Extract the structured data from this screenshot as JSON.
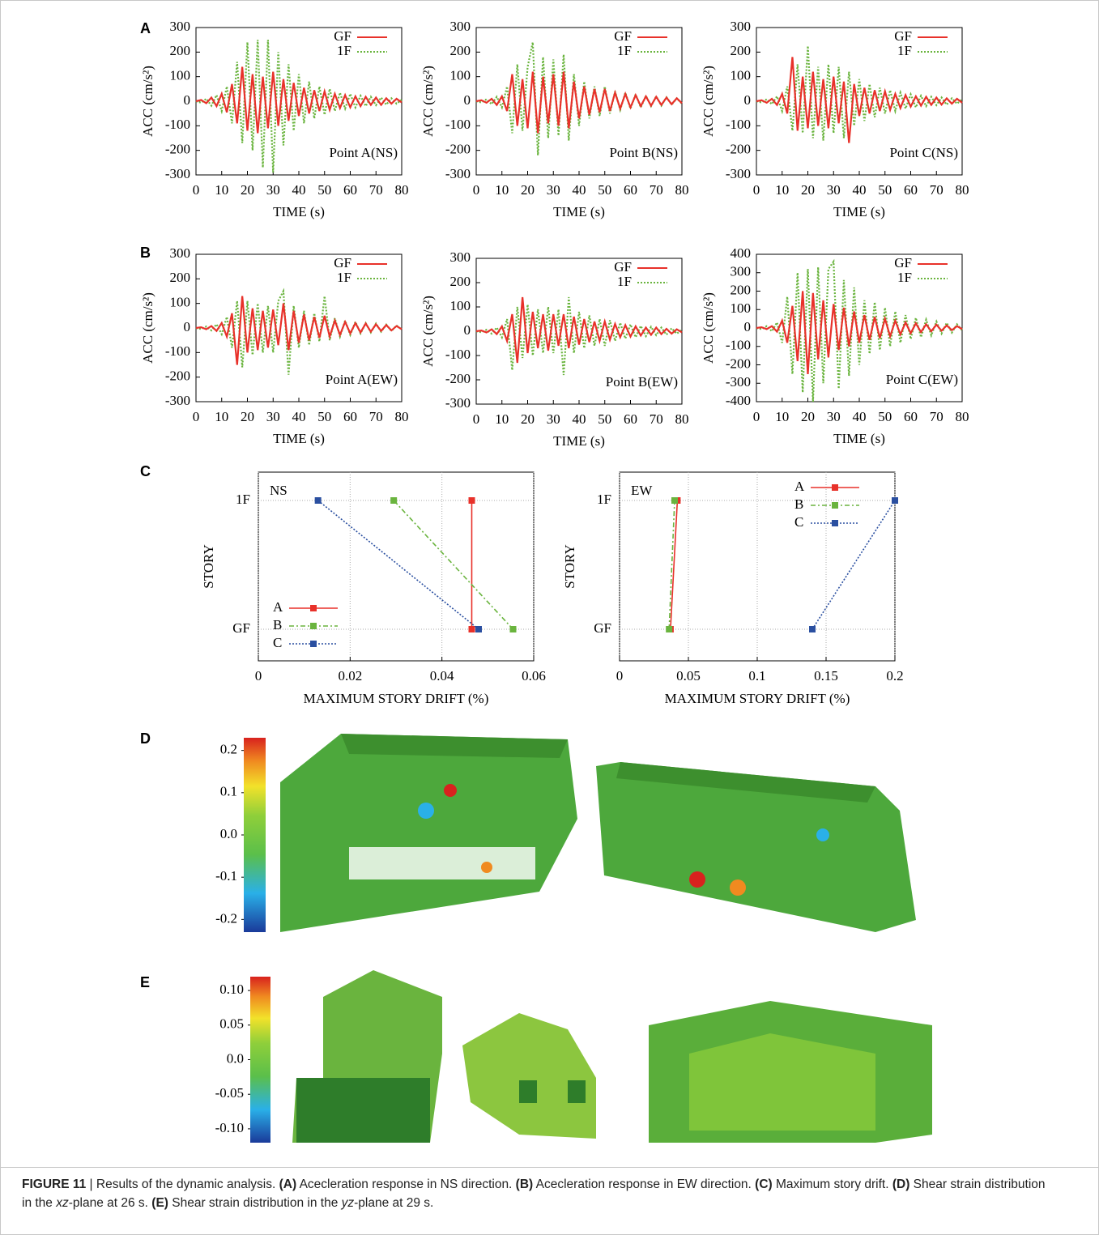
{
  "panel_labels": [
    "A",
    "B",
    "C",
    "D",
    "E"
  ],
  "chart_data": [
    {
      "type": "line",
      "annotation": "Point A(NS)",
      "xlabel": "TIME (s)",
      "ylabel": "ACC (cm/s²)",
      "xlim": [
        0,
        80
      ],
      "ylim": [
        -300,
        300
      ],
      "xticks": [
        0,
        10,
        20,
        30,
        40,
        50,
        60,
        70,
        80
      ],
      "yticks": [
        -300,
        -200,
        -100,
        0,
        100,
        200,
        300
      ],
      "legend": "upper right",
      "x": [
        0,
        2,
        4,
        6,
        8,
        10,
        12,
        14,
        16,
        18,
        20,
        22,
        24,
        26,
        28,
        30,
        32,
        34,
        36,
        38,
        40,
        42,
        44,
        46,
        48,
        50,
        52,
        54,
        56,
        58,
        60,
        62,
        64,
        66,
        68,
        70,
        72,
        74,
        76,
        78,
        80
      ],
      "series": [
        {
          "name": "GF",
          "color": "#e8312a",
          "line_style": "solid",
          "values": [
            0,
            5,
            -8,
            15,
            -20,
            30,
            -45,
            70,
            -90,
            140,
            -120,
            110,
            -130,
            100,
            -110,
            120,
            -100,
            90,
            -80,
            75,
            -60,
            55,
            -50,
            45,
            -40,
            40,
            -35,
            30,
            -28,
            25,
            -25,
            20,
            -20,
            18,
            -15,
            15,
            -15,
            12,
            -10,
            10,
            -5
          ]
        },
        {
          "name": "1F",
          "color": "#6ab43e",
          "line_style": "dotted",
          "values": [
            0,
            -6,
            10,
            -18,
            25,
            -40,
            60,
            -90,
            160,
            -170,
            240,
            -200,
            250,
            -270,
            250,
            -290,
            200,
            -180,
            150,
            -120,
            110,
            -90,
            80,
            -70,
            60,
            -55,
            50,
            -40,
            35,
            -30,
            30,
            -25,
            22,
            -20,
            18,
            -16,
            15,
            -14,
            12,
            -10,
            6
          ]
        }
      ]
    },
    {
      "type": "line",
      "annotation": "Point B(NS)",
      "xlabel": "TIME (s)",
      "ylabel": "ACC (cm/s²)",
      "xlim": [
        0,
        80
      ],
      "ylim": [
        -300,
        300
      ],
      "xticks": [
        0,
        10,
        20,
        30,
        40,
        50,
        60,
        70,
        80
      ],
      "yticks": [
        -300,
        -200,
        -100,
        0,
        100,
        200,
        300
      ],
      "legend": "upper right",
      "x": [
        0,
        2,
        4,
        6,
        8,
        10,
        12,
        14,
        16,
        18,
        20,
        22,
        24,
        26,
        28,
        30,
        32,
        34,
        36,
        38,
        40,
        42,
        44,
        46,
        48,
        50,
        52,
        54,
        56,
        58,
        60,
        62,
        64,
        66,
        68,
        70,
        72,
        74,
        76,
        78,
        80
      ],
      "series": [
        {
          "name": "GF",
          "color": "#e8312a",
          "line_style": "solid",
          "values": [
            0,
            4,
            -6,
            10,
            -15,
            20,
            -40,
            110,
            -100,
            90,
            -110,
            120,
            -130,
            100,
            -90,
            110,
            -100,
            120,
            -110,
            80,
            -70,
            60,
            -55,
            50,
            -45,
            50,
            -40,
            35,
            -30,
            30,
            -25,
            25,
            -20,
            20,
            -18,
            18,
            -15,
            15,
            -12,
            12,
            -8
          ]
        },
        {
          "name": "1F",
          "color": "#6ab43e",
          "line_style": "dotted",
          "values": [
            0,
            -5,
            8,
            -12,
            18,
            -25,
            60,
            -130,
            150,
            -120,
            140,
            240,
            -220,
            180,
            -150,
            170,
            -140,
            190,
            -160,
            110,
            -100,
            80,
            -70,
            60,
            -60,
            60,
            -50,
            40,
            -35,
            35,
            -30,
            28,
            -25,
            22,
            -20,
            20,
            -18,
            16,
            -14,
            12,
            -10
          ]
        }
      ]
    },
    {
      "type": "line",
      "annotation": "Point C(NS)",
      "xlabel": "TIME (s)",
      "ylabel": "ACC (cm/s²)",
      "xlim": [
        0,
        80
      ],
      "ylim": [
        -300,
        300
      ],
      "xticks": [
        0,
        10,
        20,
        30,
        40,
        50,
        60,
        70,
        80
      ],
      "yticks": [
        -300,
        -200,
        -100,
        0,
        100,
        200,
        300
      ],
      "legend": "upper right",
      "x": [
        0,
        2,
        4,
        6,
        8,
        10,
        12,
        14,
        16,
        18,
        20,
        22,
        24,
        26,
        28,
        30,
        32,
        34,
        36,
        38,
        40,
        42,
        44,
        46,
        48,
        50,
        52,
        54,
        56,
        58,
        60,
        62,
        64,
        66,
        68,
        70,
        72,
        74,
        76,
        78,
        80
      ],
      "series": [
        {
          "name": "GF",
          "color": "#e8312a",
          "line_style": "solid",
          "values": [
            0,
            4,
            -6,
            10,
            -15,
            30,
            -50,
            180,
            -120,
            100,
            -110,
            120,
            -100,
            90,
            -110,
            100,
            -90,
            80,
            -170,
            70,
            -60,
            55,
            -50,
            45,
            -40,
            40,
            -35,
            30,
            -28,
            25,
            -22,
            20,
            -18,
            18,
            -15,
            15,
            -14,
            12,
            -10,
            10,
            -6
          ]
        },
        {
          "name": "1F",
          "color": "#6ab43e",
          "line_style": "dotted",
          "values": [
            0,
            -5,
            8,
            -12,
            20,
            -40,
            60,
            -120,
            150,
            -130,
            225,
            -150,
            140,
            -160,
            150,
            -130,
            140,
            -150,
            120,
            -100,
            90,
            -80,
            70,
            -65,
            55,
            -50,
            45,
            -40,
            35,
            -30,
            28,
            -25,
            22,
            -20,
            18,
            -16,
            15,
            -14,
            12,
            -10,
            8
          ]
        }
      ]
    },
    {
      "type": "line",
      "annotation": "Point A(EW)",
      "xlabel": "TIME (s)",
      "ylabel": "ACC (cm/s²)",
      "xlim": [
        0,
        80
      ],
      "ylim": [
        -300,
        300
      ],
      "xticks": [
        0,
        10,
        20,
        30,
        40,
        50,
        60,
        70,
        80
      ],
      "yticks": [
        -300,
        -200,
        -100,
        0,
        100,
        200,
        300
      ],
      "legend": "upper right",
      "x": [
        0,
        2,
        4,
        6,
        8,
        10,
        12,
        14,
        16,
        18,
        20,
        22,
        24,
        26,
        28,
        30,
        32,
        34,
        36,
        38,
        40,
        42,
        44,
        46,
        48,
        50,
        52,
        54,
        56,
        58,
        60,
        62,
        64,
        66,
        68,
        70,
        72,
        74,
        76,
        78,
        80
      ],
      "series": [
        {
          "name": "GF",
          "color": "#e8312a",
          "line_style": "solid",
          "values": [
            0,
            3,
            -5,
            8,
            -12,
            20,
            -35,
            60,
            -150,
            130,
            -100,
            80,
            -90,
            70,
            -80,
            75,
            -70,
            100,
            -90,
            70,
            -60,
            55,
            -50,
            45,
            -40,
            50,
            -35,
            30,
            -28,
            25,
            -22,
            20,
            -18,
            18,
            -15,
            15,
            -12,
            12,
            -10,
            8,
            -5
          ]
        },
        {
          "name": "1F",
          "color": "#6ab43e",
          "line_style": "dotted",
          "values": [
            0,
            -4,
            6,
            -10,
            15,
            -25,
            45,
            -80,
            110,
            -160,
            110,
            -110,
            100,
            -100,
            90,
            -100,
            110,
            150,
            -190,
            90,
            -80,
            70,
            -70,
            60,
            -55,
            130,
            -50,
            40,
            -35,
            30,
            -28,
            25,
            -22,
            20,
            -18,
            18,
            -15,
            14,
            -12,
            10,
            -6
          ]
        }
      ]
    },
    {
      "type": "line",
      "annotation": "Point B(EW)",
      "xlabel": "TIME (s)",
      "ylabel": "ACC (cm/s²)",
      "xlim": [
        0,
        80
      ],
      "ylim": [
        -300,
        300
      ],
      "xticks": [
        0,
        10,
        20,
        30,
        40,
        50,
        60,
        70,
        80
      ],
      "yticks": [
        -300,
        -200,
        -100,
        0,
        100,
        200,
        300
      ],
      "legend": "upper right",
      "x": [
        0,
        2,
        4,
        6,
        8,
        10,
        12,
        14,
        16,
        18,
        20,
        22,
        24,
        26,
        28,
        30,
        32,
        34,
        36,
        38,
        40,
        42,
        44,
        46,
        48,
        50,
        52,
        54,
        56,
        58,
        60,
        62,
        64,
        66,
        68,
        70,
        72,
        74,
        76,
        78,
        80
      ],
      "series": [
        {
          "name": "GF",
          "color": "#e8312a",
          "line_style": "solid",
          "values": [
            0,
            3,
            -5,
            8,
            -12,
            20,
            -40,
            70,
            -130,
            140,
            -90,
            80,
            -70,
            70,
            -80,
            70,
            -60,
            70,
            -70,
            60,
            -55,
            50,
            -45,
            40,
            -40,
            40,
            -35,
            30,
            -25,
            25,
            -22,
            20,
            -18,
            15,
            -15,
            15,
            -12,
            10,
            -10,
            8,
            -5
          ]
        },
        {
          "name": "1F",
          "color": "#6ab43e",
          "line_style": "dotted",
          "values": [
            0,
            -4,
            6,
            -10,
            15,
            -25,
            50,
            -160,
            100,
            -110,
            110,
            -100,
            90,
            -90,
            100,
            -90,
            90,
            -180,
            140,
            -90,
            80,
            -70,
            65,
            -60,
            50,
            -60,
            45,
            -40,
            35,
            -30,
            28,
            -25,
            22,
            -20,
            18,
            -16,
            15,
            -14,
            12,
            -10,
            6
          ]
        }
      ]
    },
    {
      "type": "line",
      "annotation": "Point C(EW)",
      "xlabel": "TIME (s)",
      "ylabel": "ACC (cm/s²)",
      "xlim": [
        0,
        80
      ],
      "ylim": [
        -400,
        400
      ],
      "xticks": [
        0,
        10,
        20,
        30,
        40,
        50,
        60,
        70,
        80
      ],
      "yticks": [
        -400,
        -300,
        -200,
        -100,
        0,
        100,
        200,
        300,
        400
      ],
      "legend": "upper right",
      "x": [
        0,
        2,
        4,
        6,
        8,
        10,
        12,
        14,
        16,
        18,
        20,
        22,
        24,
        26,
        28,
        30,
        32,
        34,
        36,
        38,
        40,
        42,
        44,
        46,
        48,
        50,
        52,
        54,
        56,
        58,
        60,
        62,
        64,
        66,
        68,
        70,
        72,
        74,
        76,
        78,
        80
      ],
      "series": [
        {
          "name": "GF",
          "color": "#e8312a",
          "line_style": "solid",
          "values": [
            0,
            4,
            -6,
            10,
            -20,
            40,
            -80,
            120,
            -180,
            200,
            -250,
            190,
            -170,
            150,
            -160,
            130,
            -120,
            110,
            -100,
            90,
            -80,
            70,
            -65,
            60,
            -55,
            50,
            -45,
            40,
            -35,
            30,
            -28,
            25,
            -22,
            20,
            -18,
            18,
            -15,
            14,
            -12,
            10,
            -6
          ]
        },
        {
          "name": "1F",
          "color": "#6ab43e",
          "line_style": "dotted",
          "values": [
            0,
            -6,
            10,
            -18,
            30,
            -80,
            170,
            -250,
            300,
            -350,
            320,
            -400,
            330,
            -300,
            320,
            360,
            -330,
            260,
            -260,
            220,
            -200,
            150,
            -140,
            140,
            -120,
            110,
            -100,
            90,
            -80,
            70,
            -60,
            55,
            -50,
            45,
            -40,
            35,
            -30,
            28,
            -25,
            20,
            -12
          ]
        }
      ]
    },
    {
      "type": "line",
      "orientation": "horizontal",
      "annotation": "NS",
      "xlabel": "MAXIMUM STORY DRIFT (%)",
      "ylabel": "STORY",
      "xlim": [
        0,
        0.06
      ],
      "xticks": [
        0,
        0.02,
        0.04,
        0.06
      ],
      "categories": [
        "GF",
        "1F"
      ],
      "grid": true,
      "legend": "lower left",
      "series": [
        {
          "name": "A",
          "color": "#e8312a",
          "line_style": "solid",
          "values": [
            0.0465,
            0.0465
          ]
        },
        {
          "name": "B",
          "color": "#6ab43e",
          "line_style": "dashdot",
          "values": [
            0.0555,
            0.0295
          ]
        },
        {
          "name": "C",
          "color": "#2a4fa0",
          "line_style": "dotted",
          "values": [
            0.048,
            0.013
          ]
        }
      ]
    },
    {
      "type": "line",
      "orientation": "horizontal",
      "annotation": "EW",
      "xlabel": "MAXIMUM STORY DRIFT (%)",
      "ylabel": "STORY",
      "xlim": [
        0,
        0.2
      ],
      "xticks": [
        0,
        0.05,
        0.1,
        0.15,
        0.2
      ],
      "categories": [
        "GF",
        "1F"
      ],
      "grid": true,
      "legend": "upper right",
      "series": [
        {
          "name": "A",
          "color": "#e8312a",
          "line_style": "solid",
          "values": [
            0.037,
            0.042
          ]
        },
        {
          "name": "B",
          "color": "#6ab43e",
          "line_style": "dashdot",
          "values": [
            0.036,
            0.04
          ]
        },
        {
          "name": "C",
          "color": "#2a4fa0",
          "line_style": "dotted",
          "values": [
            0.14,
            0.2
          ]
        }
      ]
    },
    {
      "type": "colorbar",
      "ylim": [
        -0.23,
        0.23
      ],
      "yticks": [
        0.2,
        0.1,
        {
          "value": 0,
          "label": "0.0"
        },
        -0.1,
        -0.2
      ]
    },
    {
      "type": "colorbar",
      "ylim": [
        -0.12,
        0.12
      ],
      "yticks": [
        {
          "value": 0.1,
          "label": "0.10"
        },
        0.05,
        {
          "value": 0,
          "label": "0.0"
        },
        -0.05,
        {
          "value": -0.1,
          "label": "-0.10"
        }
      ]
    }
  ],
  "caption": [
    {
      "text": "FIGURE 11",
      "bold": true
    },
    {
      "text": " | Results of the dynamic analysis. "
    },
    {
      "text": "(A)",
      "bold": true
    },
    {
      "text": " Acecleration response in NS direction. "
    },
    {
      "text": "(B)",
      "bold": true
    },
    {
      "text": " Acecleration response in EW direction. "
    },
    {
      "text": "(C)",
      "bold": true
    },
    {
      "text": " Maximum story drift. "
    },
    {
      "text": "(D)",
      "bold": true
    },
    {
      "text": " Shear strain distribution in the "
    },
    {
      "text": "xz",
      "italic": true
    },
    {
      "text": "-plane at 26 s. "
    },
    {
      "text": "(E)",
      "bold": true
    },
    {
      "text": " Shear strain distribution in the "
    },
    {
      "text": "yz",
      "italic": true
    },
    {
      "text": "-plane at 29 s."
    }
  ]
}
